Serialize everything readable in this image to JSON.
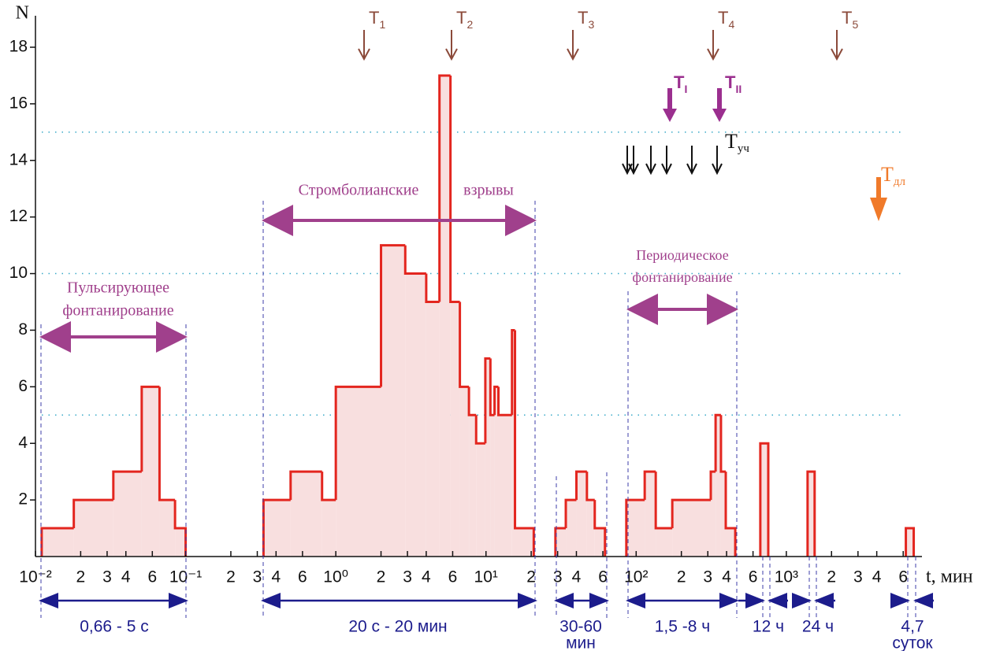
{
  "chart_data": {
    "type": "histogram",
    "bins": [
      0.011,
      0.018,
      0.033,
      0.051,
      0.067,
      0.085,
      0.1,
      0.33,
      0.5,
      0.81,
      1.0,
      2.0,
      2.9,
      4.0,
      4.9,
      5.8,
      6.7,
      7.7,
      8.6,
      9.9,
      10.7,
      11.4,
      12.1,
      14.9,
      15.6,
      20.8,
      29,
      34,
      40,
      47,
      53,
      62,
      86,
      114,
      135,
      174,
      314,
      338,
      367,
      395,
      457,
      671,
      758,
      1385,
      1543,
      6250,
      7050
    ],
    "counts": [
      1,
      2,
      3,
      6,
      2,
      1,
      0,
      2,
      3,
      2,
      6,
      11,
      10,
      9,
      17,
      9,
      6,
      5,
      4,
      7,
      5,
      6,
      5,
      8,
      1,
      0,
      1,
      2,
      3,
      2,
      1,
      0,
      2,
      3,
      1,
      2,
      3,
      5,
      3,
      1,
      0,
      4,
      0,
      3,
      0,
      1
    ],
    "color": "#e3261f",
    "fill_color": "#f8dfdf",
    "log_x": true,
    "xlim": [
      0.01,
      8000
    ],
    "xticks": [
      {
        "value": 0.01,
        "label": "10⁻²"
      },
      {
        "value": 0.02,
        "label": "2"
      },
      {
        "value": 0.03,
        "label": "3"
      },
      {
        "value": 0.04,
        "label": "4"
      },
      {
        "value": 0.06,
        "label": "6"
      },
      {
        "value": 0.1,
        "label": "10⁻¹"
      },
      {
        "value": 0.2,
        "label": "2"
      },
      {
        "value": 0.3,
        "label": "3"
      },
      {
        "value": 0.4,
        "label": "4"
      },
      {
        "value": 0.6,
        "label": "6"
      },
      {
        "value": 1,
        "label": "10⁰"
      },
      2,
      3,
      4,
      6,
      {
        "value": 10,
        "label": "10¹"
      },
      {
        "value": 20,
        "label": "2"
      },
      {
        "value": 30,
        "label": "3"
      },
      {
        "value": 40,
        "label": "4"
      },
      {
        "value": 60,
        "label": "6"
      },
      {
        "value": 100,
        "label": "10²"
      },
      {
        "value": 200,
        "label": "2"
      },
      {
        "value": 300,
        "label": "3"
      },
      {
        "value": 400,
        "label": "4"
      },
      {
        "value": 600,
        "label": "6"
      },
      {
        "value": 1000,
        "label": "10³"
      },
      {
        "value": 2000,
        "label": "2"
      },
      {
        "value": 3000,
        "label": "3"
      },
      {
        "value": 4000,
        "label": "4"
      },
      {
        "value": 6000,
        "label": "6"
      }
    ],
    "ylim": [
      0,
      18
    ],
    "yticks": [
      2,
      4,
      6,
      8,
      10,
      12,
      14,
      16,
      18
    ],
    "ref_lines": [
      5,
      10,
      15
    ],
    "xlabel": "t, мин",
    "ylabel": "N",
    "regimes": [
      [
        "Пульсирующее",
        "фонтанирование"
      ],
      [
        "Стромболианские",
        "взрывы"
      ],
      [
        "Периодическое",
        "фонтанирование"
      ]
    ],
    "durations": [
      [
        "0,66 - 5 с"
      ],
      [
        "20 с - 20 мин"
      ],
      [
        "30-60",
        "мин"
      ],
      [
        "1,5 -8 ч"
      ],
      [
        "12 ч"
      ],
      [
        "24 ч"
      ],
      [
        "4,7",
        "суток"
      ]
    ],
    "periods": [
      {
        "main": "T",
        "sub": "1"
      },
      {
        "main": "T",
        "sub": "2"
      },
      {
        "main": "T",
        "sub": "3"
      },
      {
        "main": "T",
        "sub": "4"
      },
      {
        "main": "T",
        "sub": "5"
      }
    ],
    "periods_roman": [
      {
        "main": "T",
        "sub": "I"
      },
      {
        "main": "T",
        "sub": "II"
      }
    ],
    "period_uch": {
      "main": "T",
      "sub": "уч"
    },
    "period_dl": {
      "main": "T",
      "sub": "дл"
    }
  }
}
